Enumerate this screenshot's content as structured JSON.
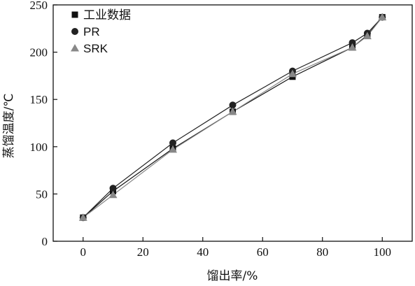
{
  "chart_data": {
    "type": "line",
    "xlabel": "馏出率/%",
    "ylabel": "蒸馏温度/℃",
    "xlim": [
      -10,
      110
    ],
    "ylim": [
      0,
      250
    ],
    "xticks": [
      0,
      20,
      40,
      60,
      80,
      100
    ],
    "yticks": [
      0,
      50,
      100,
      150,
      200,
      250
    ],
    "legend_position": "top-left",
    "grid": false,
    "series": [
      {
        "name": "工业数据",
        "marker": "square",
        "color": "#111111",
        "x": [
          0,
          10,
          30,
          50,
          70,
          90,
          95,
          100
        ],
        "y": [
          25,
          53,
          98,
          137,
          174,
          205,
          218,
          237
        ]
      },
      {
        "name": "PR",
        "marker": "circle",
        "color": "#222222",
        "x": [
          0,
          10,
          30,
          50,
          70,
          90,
          95,
          100
        ],
        "y": [
          25,
          56,
          104,
          144,
          180,
          210,
          220,
          237
        ]
      },
      {
        "name": "SRK",
        "marker": "triangle",
        "color": "#888888",
        "x": [
          0,
          10,
          30,
          50,
          70,
          90,
          95,
          100
        ],
        "y": [
          25,
          49,
          97,
          137,
          177,
          205,
          217,
          237
        ]
      }
    ]
  }
}
